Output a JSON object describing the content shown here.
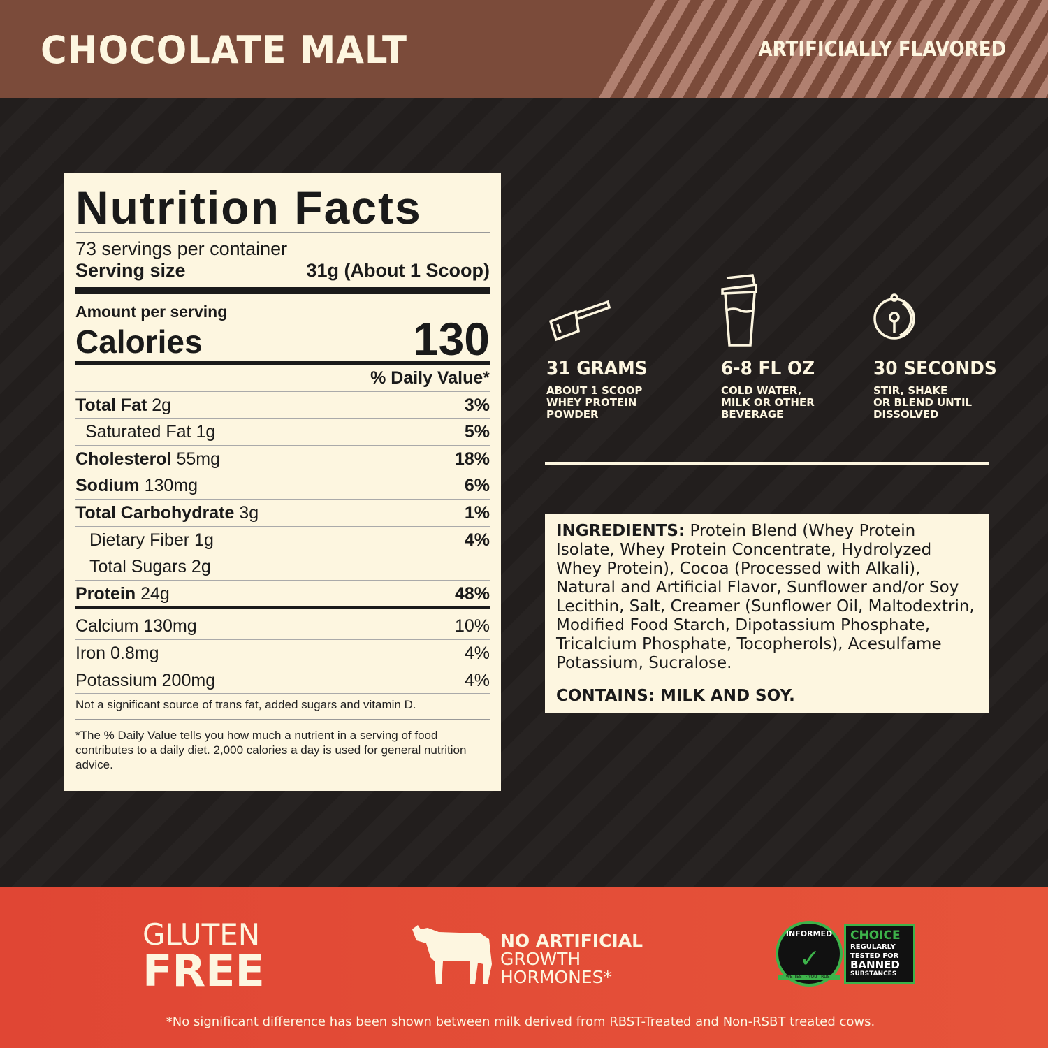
{
  "header": {
    "flavor": "CHOCOLATE MALT",
    "note": "ARTIFICIALLY FLAVORED",
    "color": "#7b4b3a"
  },
  "nutrition": {
    "title": "Nutrition Facts",
    "servings": "73 servings per container",
    "serving_size_label": "Serving size",
    "serving_size_value": "31g (About 1 Scoop)",
    "amount_label": "Amount per serving",
    "calories_label": "Calories",
    "calories_value": "130",
    "dv_header": "% Daily Value*",
    "rows": [
      {
        "name": "Total Fat",
        "amount": "2g",
        "dv": "3%"
      },
      {
        "name": "Saturated Fat",
        "amount": "1g",
        "dv": "5%"
      },
      {
        "name": "Cholesterol",
        "amount": "55mg",
        "dv": "18%"
      },
      {
        "name": "Sodium",
        "amount": "130mg",
        "dv": "6%"
      },
      {
        "name": "Total Carbohydrate",
        "amount": "3g",
        "dv": "1%"
      },
      {
        "name": "Dietary Fiber",
        "amount": "1g",
        "dv": "4%"
      },
      {
        "name": "Total Sugars",
        "amount": "2g",
        "dv": ""
      },
      {
        "name": "Protein",
        "amount": "24g",
        "dv": "48%"
      }
    ],
    "minerals": [
      {
        "name": "Calcium 130mg",
        "dv": "10%"
      },
      {
        "name": "Iron 0.8mg",
        "dv": "4%"
      },
      {
        "name": "Potassium 200mg",
        "dv": "4%"
      }
    ],
    "note": "Not a significant source of trans fat, added sugars and vitamin D.",
    "footnote": "*The % Daily Value tells you how much a nutrient in a serving of food contributes to a daily diet. 2,000 calories a day is used for general nutrition advice."
  },
  "directions": [
    {
      "icon": "scoop-icon",
      "title": "31 GRAMS",
      "sub": "ABOUT 1 SCOOP\nWHEY PROTEIN\nPOWDER"
    },
    {
      "icon": "shaker-icon",
      "title": "6-8 FL OZ",
      "sub": "COLD WATER,\nMILK OR OTHER\nBEVERAGE"
    },
    {
      "icon": "timer-icon",
      "title": "30 SECONDS",
      "sub": "STIR, SHAKE\nOR BLEND UNTIL\nDISSOLVED"
    }
  ],
  "ingredients": {
    "label": "INGREDIENTS:",
    "text": " Protein Blend (Whey Protein Isolate, Whey Protein Concentrate, Hydrolyzed Whey Protein), Cocoa (Processed with Alkali), Natural and Artificial Flavor, Sunflower and/or Soy Lecithin, Salt, Creamer (Sunflower Oil, Maltodextrin, Modified Food Starch, Dipotassium Phosphate, Tricalcium Phosphate, Tocopherols), Acesulfame Potassium, Sucralose.",
    "contains": "CONTAINS: MILK AND SOY."
  },
  "footer": {
    "gluten": [
      "GLUTEN",
      "FREE"
    ],
    "hormones": [
      "NO ARTIFICIAL",
      "GROWTH",
      "HORMONES*"
    ],
    "informed": {
      "ring": "INFORMED",
      "ring_bottom": "WE TEST · YOU TRUST",
      "choice": "CHOICE",
      "text": "REGULARLY TESTED FOR",
      "banned": "BANNED",
      "substances": "SUBSTANCES",
      "color": "#3db34a"
    },
    "disclaimer": "*No significant difference has been shown between milk derived from RBST-Treated and Non-RSBT treated cows.",
    "color": "#e24a35"
  }
}
